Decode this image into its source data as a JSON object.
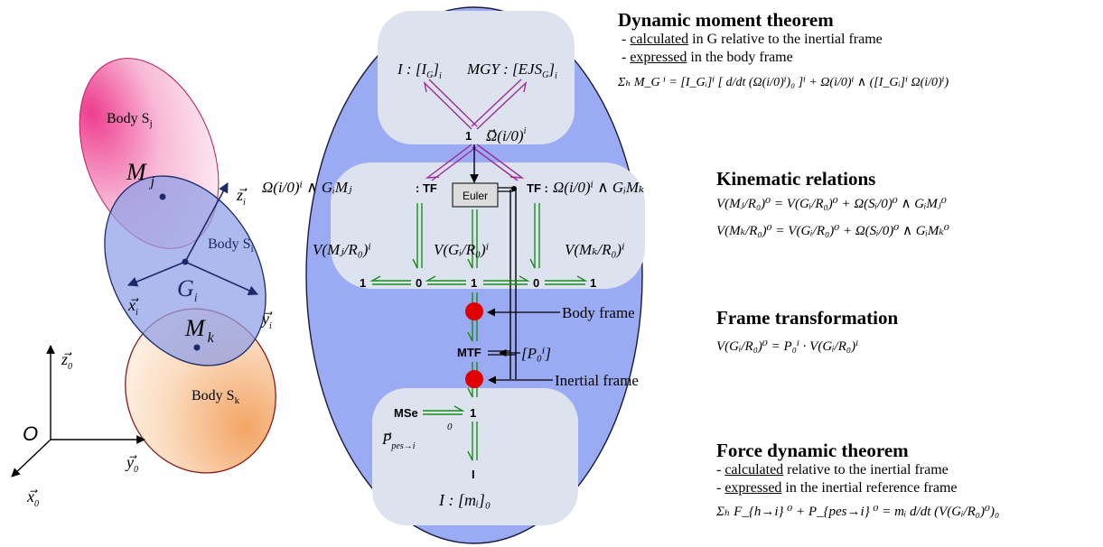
{
  "bodies": {
    "sj": {
      "label": "Body S",
      "sub": "j",
      "point": "M",
      "point_sub": "j"
    },
    "si": {
      "label": "Body S",
      "sub": "i",
      "center": "G",
      "center_sub": "i"
    },
    "sk": {
      "label": "Body S",
      "sub": "k",
      "point": "M",
      "point_sub": "k"
    },
    "frame_i": {
      "x": "x",
      "y": "y",
      "z": "z",
      "index": "i"
    },
    "frame_0": {
      "origin": "O",
      "x": "x",
      "y": "y",
      "z": "z",
      "index": "0"
    }
  },
  "bond_graph": {
    "inertia_top": "I : [I",
    "inertia_top_sub": "G",
    "mgy": "MGY : [EJS",
    "omega_label": "Ω(i/0)",
    "omega_sup": "i",
    "junction_top": "1",
    "euler": "Euler",
    "tf": "TF",
    "tf_left_expr": "Ω(i/0)ⁱ ∧ GᵢMⱼ",
    "tf_right_expr": "Ω(i/0)ⁱ ∧ GᵢMₖ",
    "velocity_left": "V(Mⱼ/R₀)ⁱ",
    "velocity_center": "V(Gᵢ/R₀)ⁱ",
    "velocity_right": "V(Mₖ/R₀)ⁱ",
    "junction_row": [
      "1",
      "0",
      "1",
      "0",
      "1"
    ],
    "body_frame": "Body frame",
    "mtf": "MTF",
    "p0i": "[P₀ⁱ]",
    "inertial_frame": "Inertial frame",
    "mse": "MSe",
    "junction_bottom": "1",
    "p_pes": "P",
    "p_pes_sub": "pes→i",
    "p_pes_sup": "0",
    "i_label": "I",
    "mass": "I : [mᵢ]₀"
  },
  "panels": {
    "dynamic_moment": {
      "title": "Dynamic moment theorem",
      "l1_u": "calculated",
      "l1_rest": " in G relative to the inertial frame",
      "l2_u": "expressed",
      "l2_rest": " in the body frame",
      "eq": "Σₕ M_G ⁱ = [I_Gᵢ]ⁱ [ d/dt (Ω(i/0)ⁱ)₀ ]ⁱ + Ω(i/0)ⁱ ∧ ([I_Gᵢ]ⁱ Ω(i/0)ⁱ)"
    },
    "kinematic": {
      "title": "Kinematic relations",
      "eq1": "V(Mⱼ/R₀)⁰ = V(Gᵢ/R₀)⁰ + Ω(Sᵢ/0)⁰ ∧ GᵢMⱼ⁰",
      "eq2": "V(Mₖ/R₀)⁰ = V(Gᵢ/R₀)⁰ + Ω(Sᵢ/0)⁰ ∧ GᵢMₖ⁰"
    },
    "frame": {
      "title": "Frame transformation",
      "eq": "V(Gᵢ/R₀)⁰ = P₀ⁱ · V(Gᵢ/R₀)ⁱ"
    },
    "force": {
      "title": "Force dynamic theorem",
      "l1_u": "calculated",
      "l1_rest": " relative to the inertial frame",
      "l2_u": "expressed",
      "l2_rest": " in the inertial reference frame",
      "eq": "Σₕ F_{h→i} ⁰ + P_{pes→i} ⁰ = mᵢ d/dt (V(Gᵢ/R₀)⁰)₀"
    }
  },
  "colors": {
    "big_ellipse": "#9aabf3",
    "body_si": "#8f9ee6",
    "bond_green": "#1a8c1a",
    "bond_purple": "#9b2c9b",
    "junction_red": "#e00000"
  }
}
